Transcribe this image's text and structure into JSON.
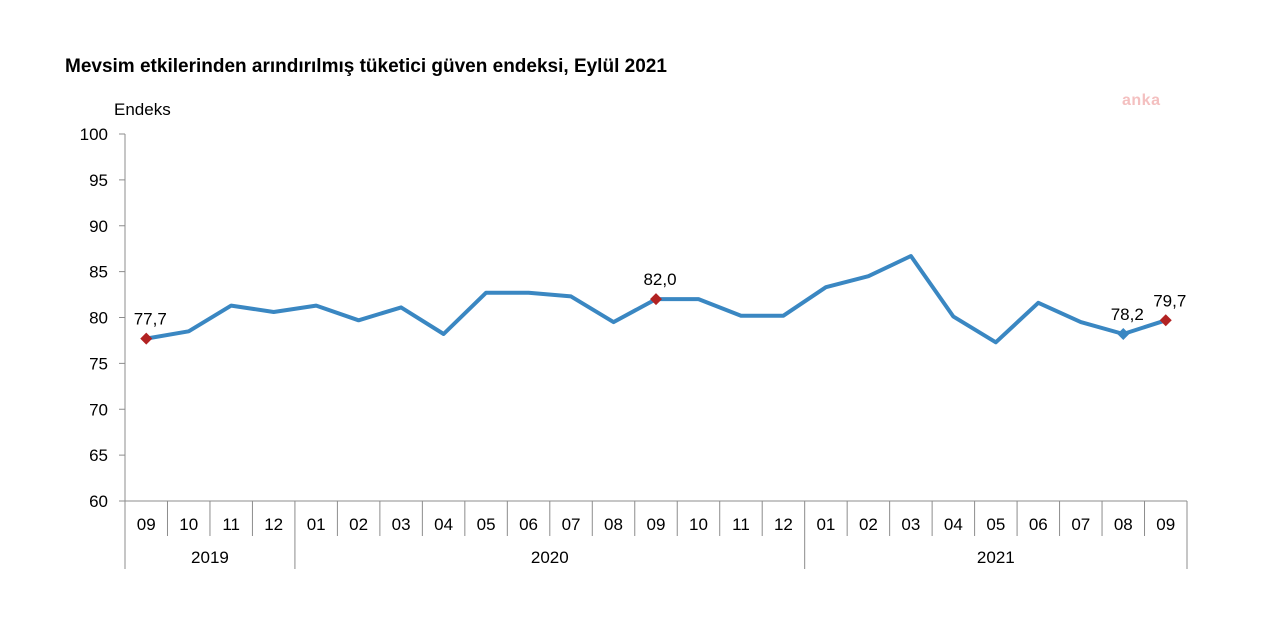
{
  "chart_data": {
    "type": "line",
    "title": "Mevsim etkilerinden arındırılmış tüketici güven endeksi, Eylül 2021",
    "ylabel": "Endeks",
    "ylim": [
      60,
      100
    ],
    "yticks": [
      "60",
      "65",
      "70",
      "75",
      "80",
      "85",
      "90",
      "95",
      "100"
    ],
    "categories": [
      "09",
      "10",
      "11",
      "12",
      "01",
      "02",
      "03",
      "04",
      "05",
      "06",
      "07",
      "08",
      "09",
      "10",
      "11",
      "12",
      "01",
      "02",
      "03",
      "04",
      "05",
      "06",
      "07",
      "08",
      "09"
    ],
    "years": [
      {
        "label": "2019",
        "start": 0,
        "end": 3
      },
      {
        "label": "2020",
        "start": 4,
        "end": 15
      },
      {
        "label": "2021",
        "start": 16,
        "end": 24
      }
    ],
    "series": [
      {
        "values": [
          77.7,
          78.5,
          81.3,
          80.6,
          81.3,
          79.7,
          81.1,
          78.2,
          82.7,
          82.7,
          82.3,
          79.5,
          82.0,
          82.0,
          80.2,
          80.2,
          83.3,
          84.5,
          86.7,
          80.1,
          77.3,
          81.6,
          79.5,
          78.2,
          79.7
        ]
      }
    ],
    "annotations": [
      {
        "index": 0,
        "label": "77,7",
        "marker": "diamond"
      },
      {
        "index": 12,
        "label": "82,0",
        "marker": "diamond"
      },
      {
        "index": 23,
        "label": "78,2",
        "marker": "blue-diamond"
      },
      {
        "index": 24,
        "label": "79,7",
        "marker": "diamond"
      }
    ],
    "grid": false,
    "colors": {
      "line": "#3a87c2",
      "marker": "#b22222",
      "axis": "#8c8c8c"
    }
  },
  "watermark": {
    "text": "anka",
    "color": "#f4c0c0"
  }
}
